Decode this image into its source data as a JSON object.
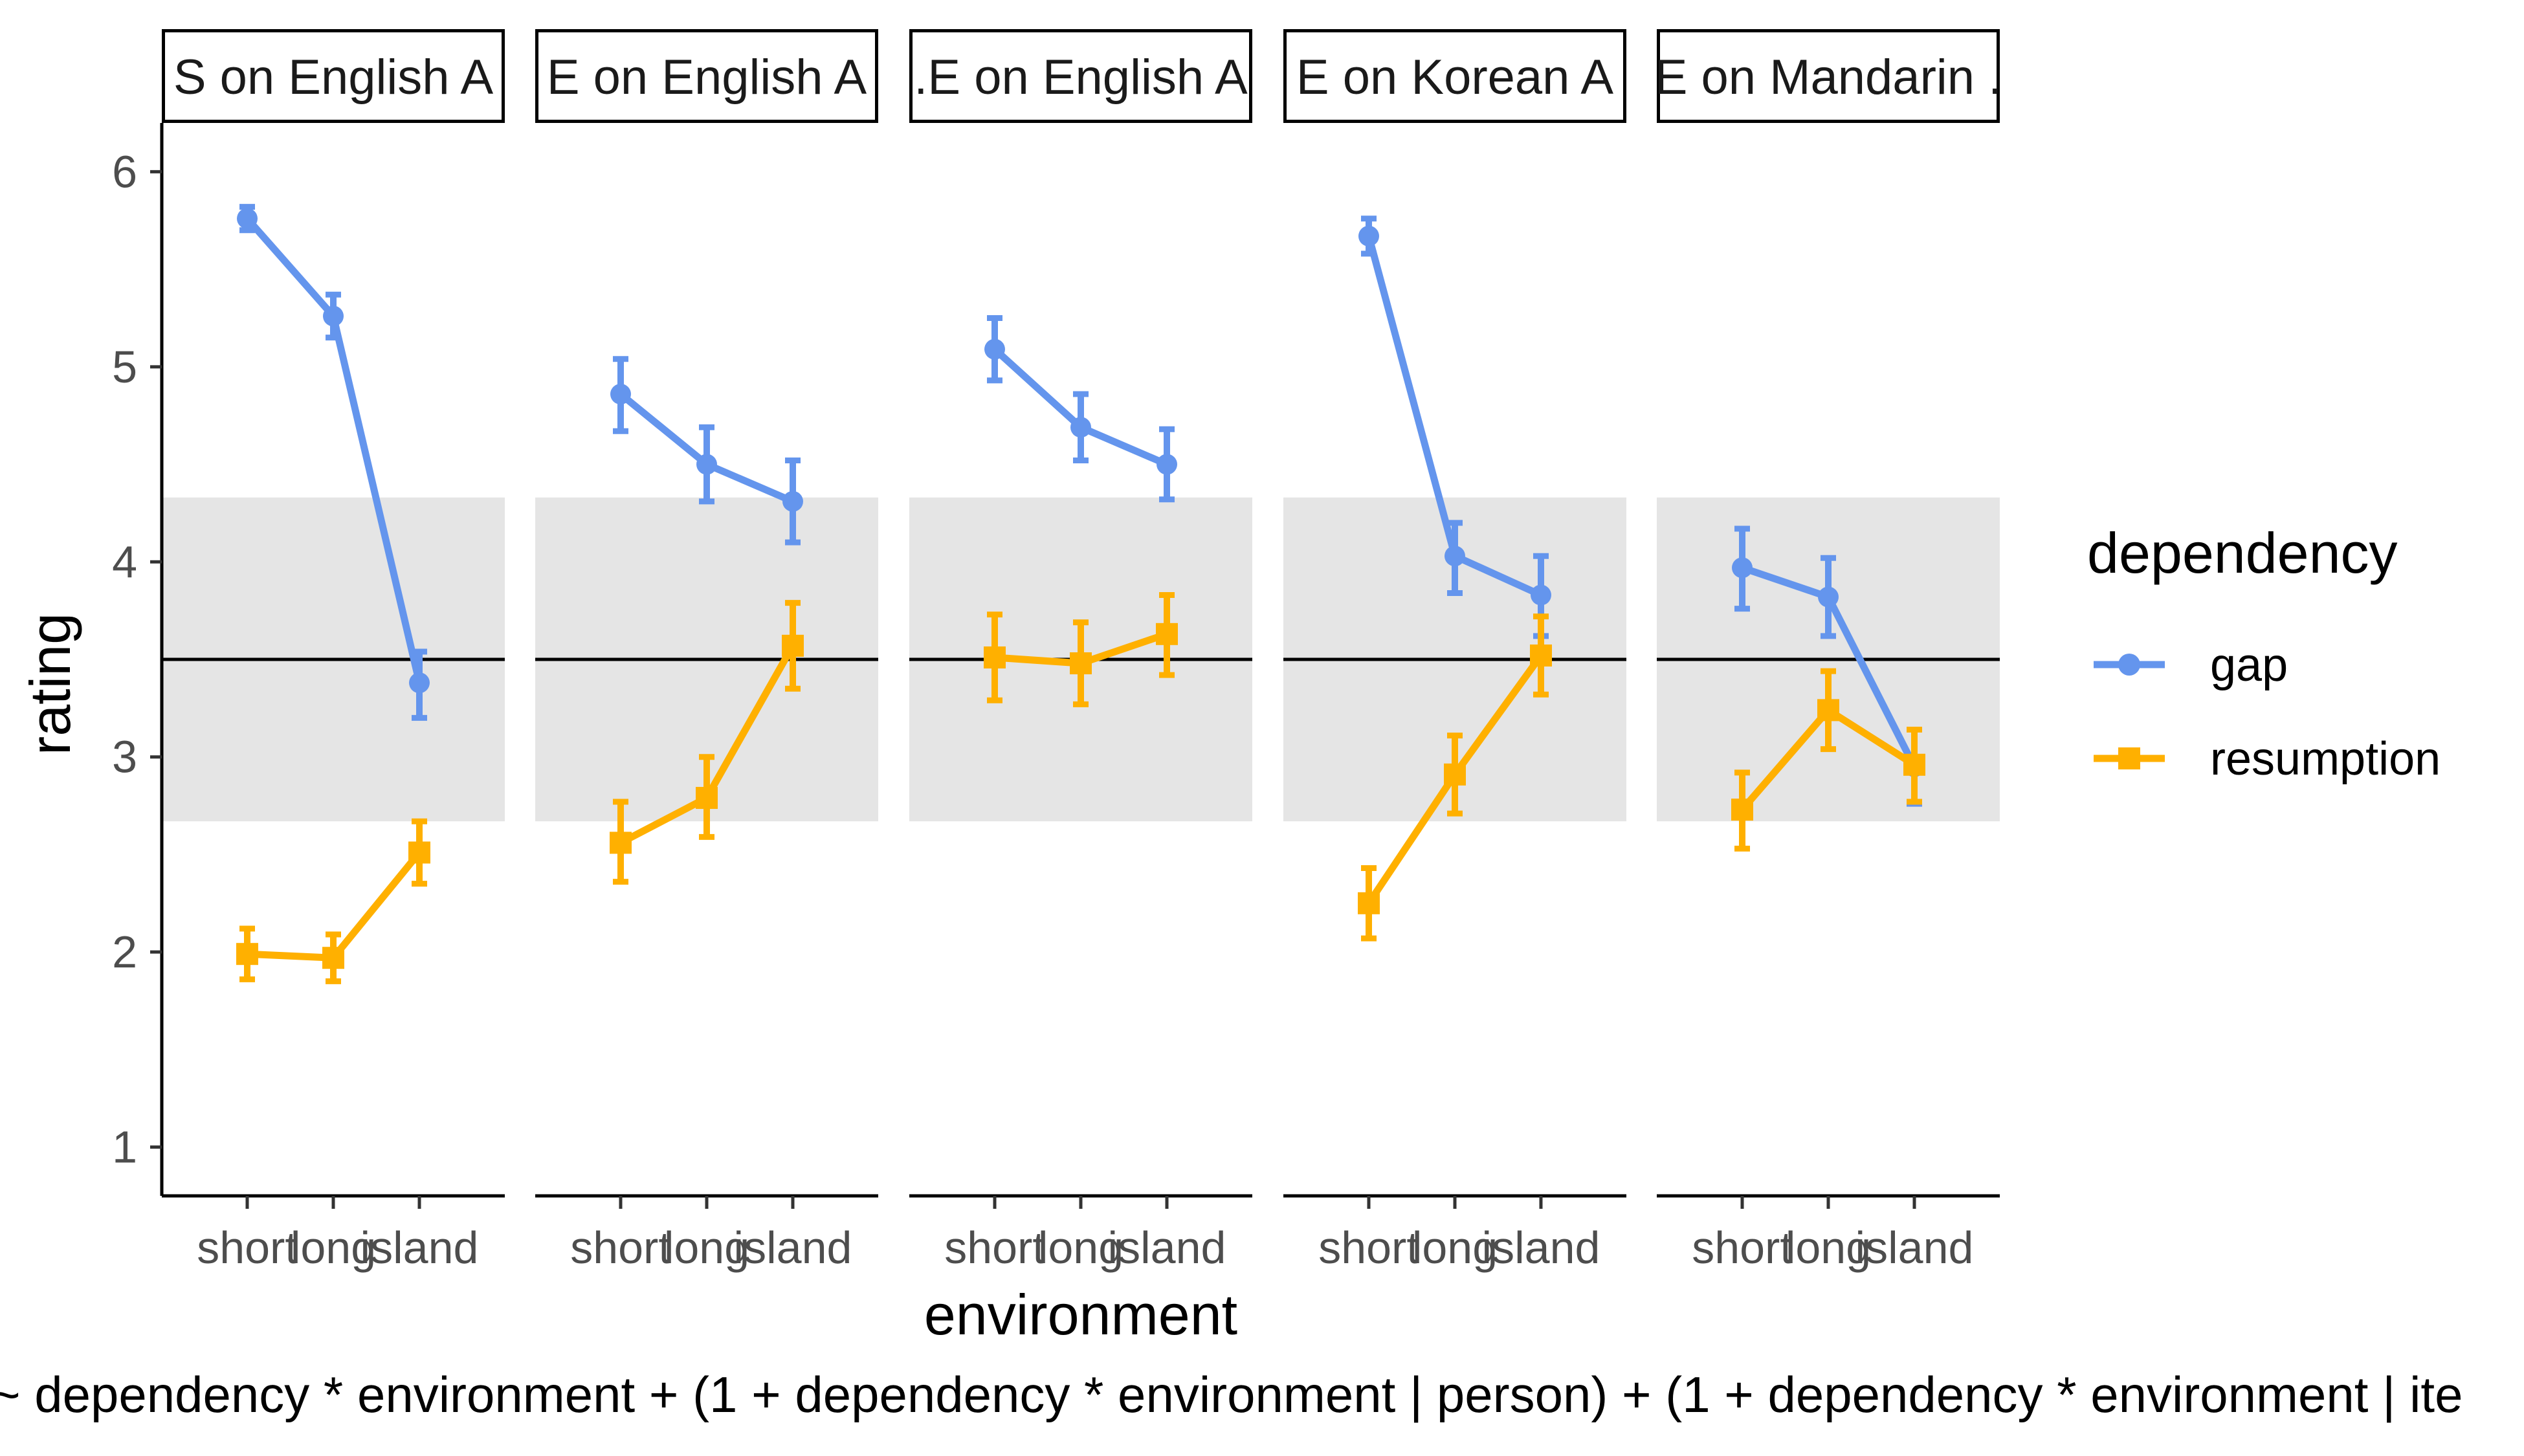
{
  "chart_data": {
    "type": "line",
    "facets": [
      "S on English A",
      "E on English A",
      ".E on English A",
      "E on Korean A",
      "E on Mandarin ."
    ],
    "x_categories": [
      "short",
      "long",
      "island"
    ],
    "xlabel": "environment",
    "ylabel": "rating",
    "ylim": [
      0.75,
      6.25
    ],
    "y_ticks": [
      1,
      2,
      3,
      4,
      5,
      6
    ],
    "reference_line": 3.5,
    "reference_band": [
      2.67,
      4.33
    ],
    "legend": {
      "title": "dependency",
      "placement": "right"
    },
    "series": [
      {
        "name": "gap",
        "color": "#6495ED",
        "marker": "circle",
        "panels": [
          {
            "values": [
              5.76,
              5.26,
              3.38
            ],
            "lower": [
              5.7,
              5.15,
              3.2
            ],
            "upper": [
              5.82,
              5.37,
              3.54
            ]
          },
          {
            "values": [
              4.86,
              4.5,
              4.31
            ],
            "lower": [
              4.67,
              4.31,
              4.1
            ],
            "upper": [
              5.04,
              4.69,
              4.52
            ]
          },
          {
            "values": [
              5.09,
              4.69,
              4.5
            ],
            "lower": [
              4.93,
              4.52,
              4.32
            ],
            "upper": [
              5.25,
              4.86,
              4.68
            ]
          },
          {
            "values": [
              5.67,
              4.03,
              3.83
            ],
            "lower": [
              5.58,
              3.84,
              3.62
            ],
            "upper": [
              5.76,
              4.2,
              4.03
            ]
          },
          {
            "values": [
              3.97,
              3.82,
              2.95
            ],
            "lower": [
              3.76,
              3.62,
              2.76
            ],
            "upper": [
              4.17,
              4.02,
              3.14
            ]
          }
        ]
      },
      {
        "name": "resumption",
        "color": "#FFB000",
        "marker": "square",
        "panels": [
          {
            "values": [
              1.99,
              1.97,
              2.51
            ],
            "lower": [
              1.86,
              1.85,
              2.35
            ],
            "upper": [
              2.12,
              2.09,
              2.67
            ]
          },
          {
            "values": [
              2.56,
              2.79,
              3.57
            ],
            "lower": [
              2.36,
              2.59,
              3.35
            ],
            "upper": [
              2.77,
              3.0,
              3.79
            ]
          },
          {
            "values": [
              3.51,
              3.48,
              3.63
            ],
            "lower": [
              3.29,
              3.27,
              3.42
            ],
            "upper": [
              3.73,
              3.69,
              3.83
            ]
          },
          {
            "values": [
              2.25,
              2.91,
              3.52
            ],
            "lower": [
              2.07,
              2.71,
              3.32
            ],
            "upper": [
              2.43,
              3.11,
              3.72
            ]
          },
          {
            "values": [
              2.73,
              3.24,
              2.96
            ],
            "lower": [
              2.53,
              3.04,
              2.77
            ],
            "upper": [
              2.92,
              3.44,
              3.14
            ]
          }
        ]
      }
    ],
    "caption": "~ dependency * environment + (1 + dependency * environment | person) + (1 + dependency * environment | ite"
  }
}
